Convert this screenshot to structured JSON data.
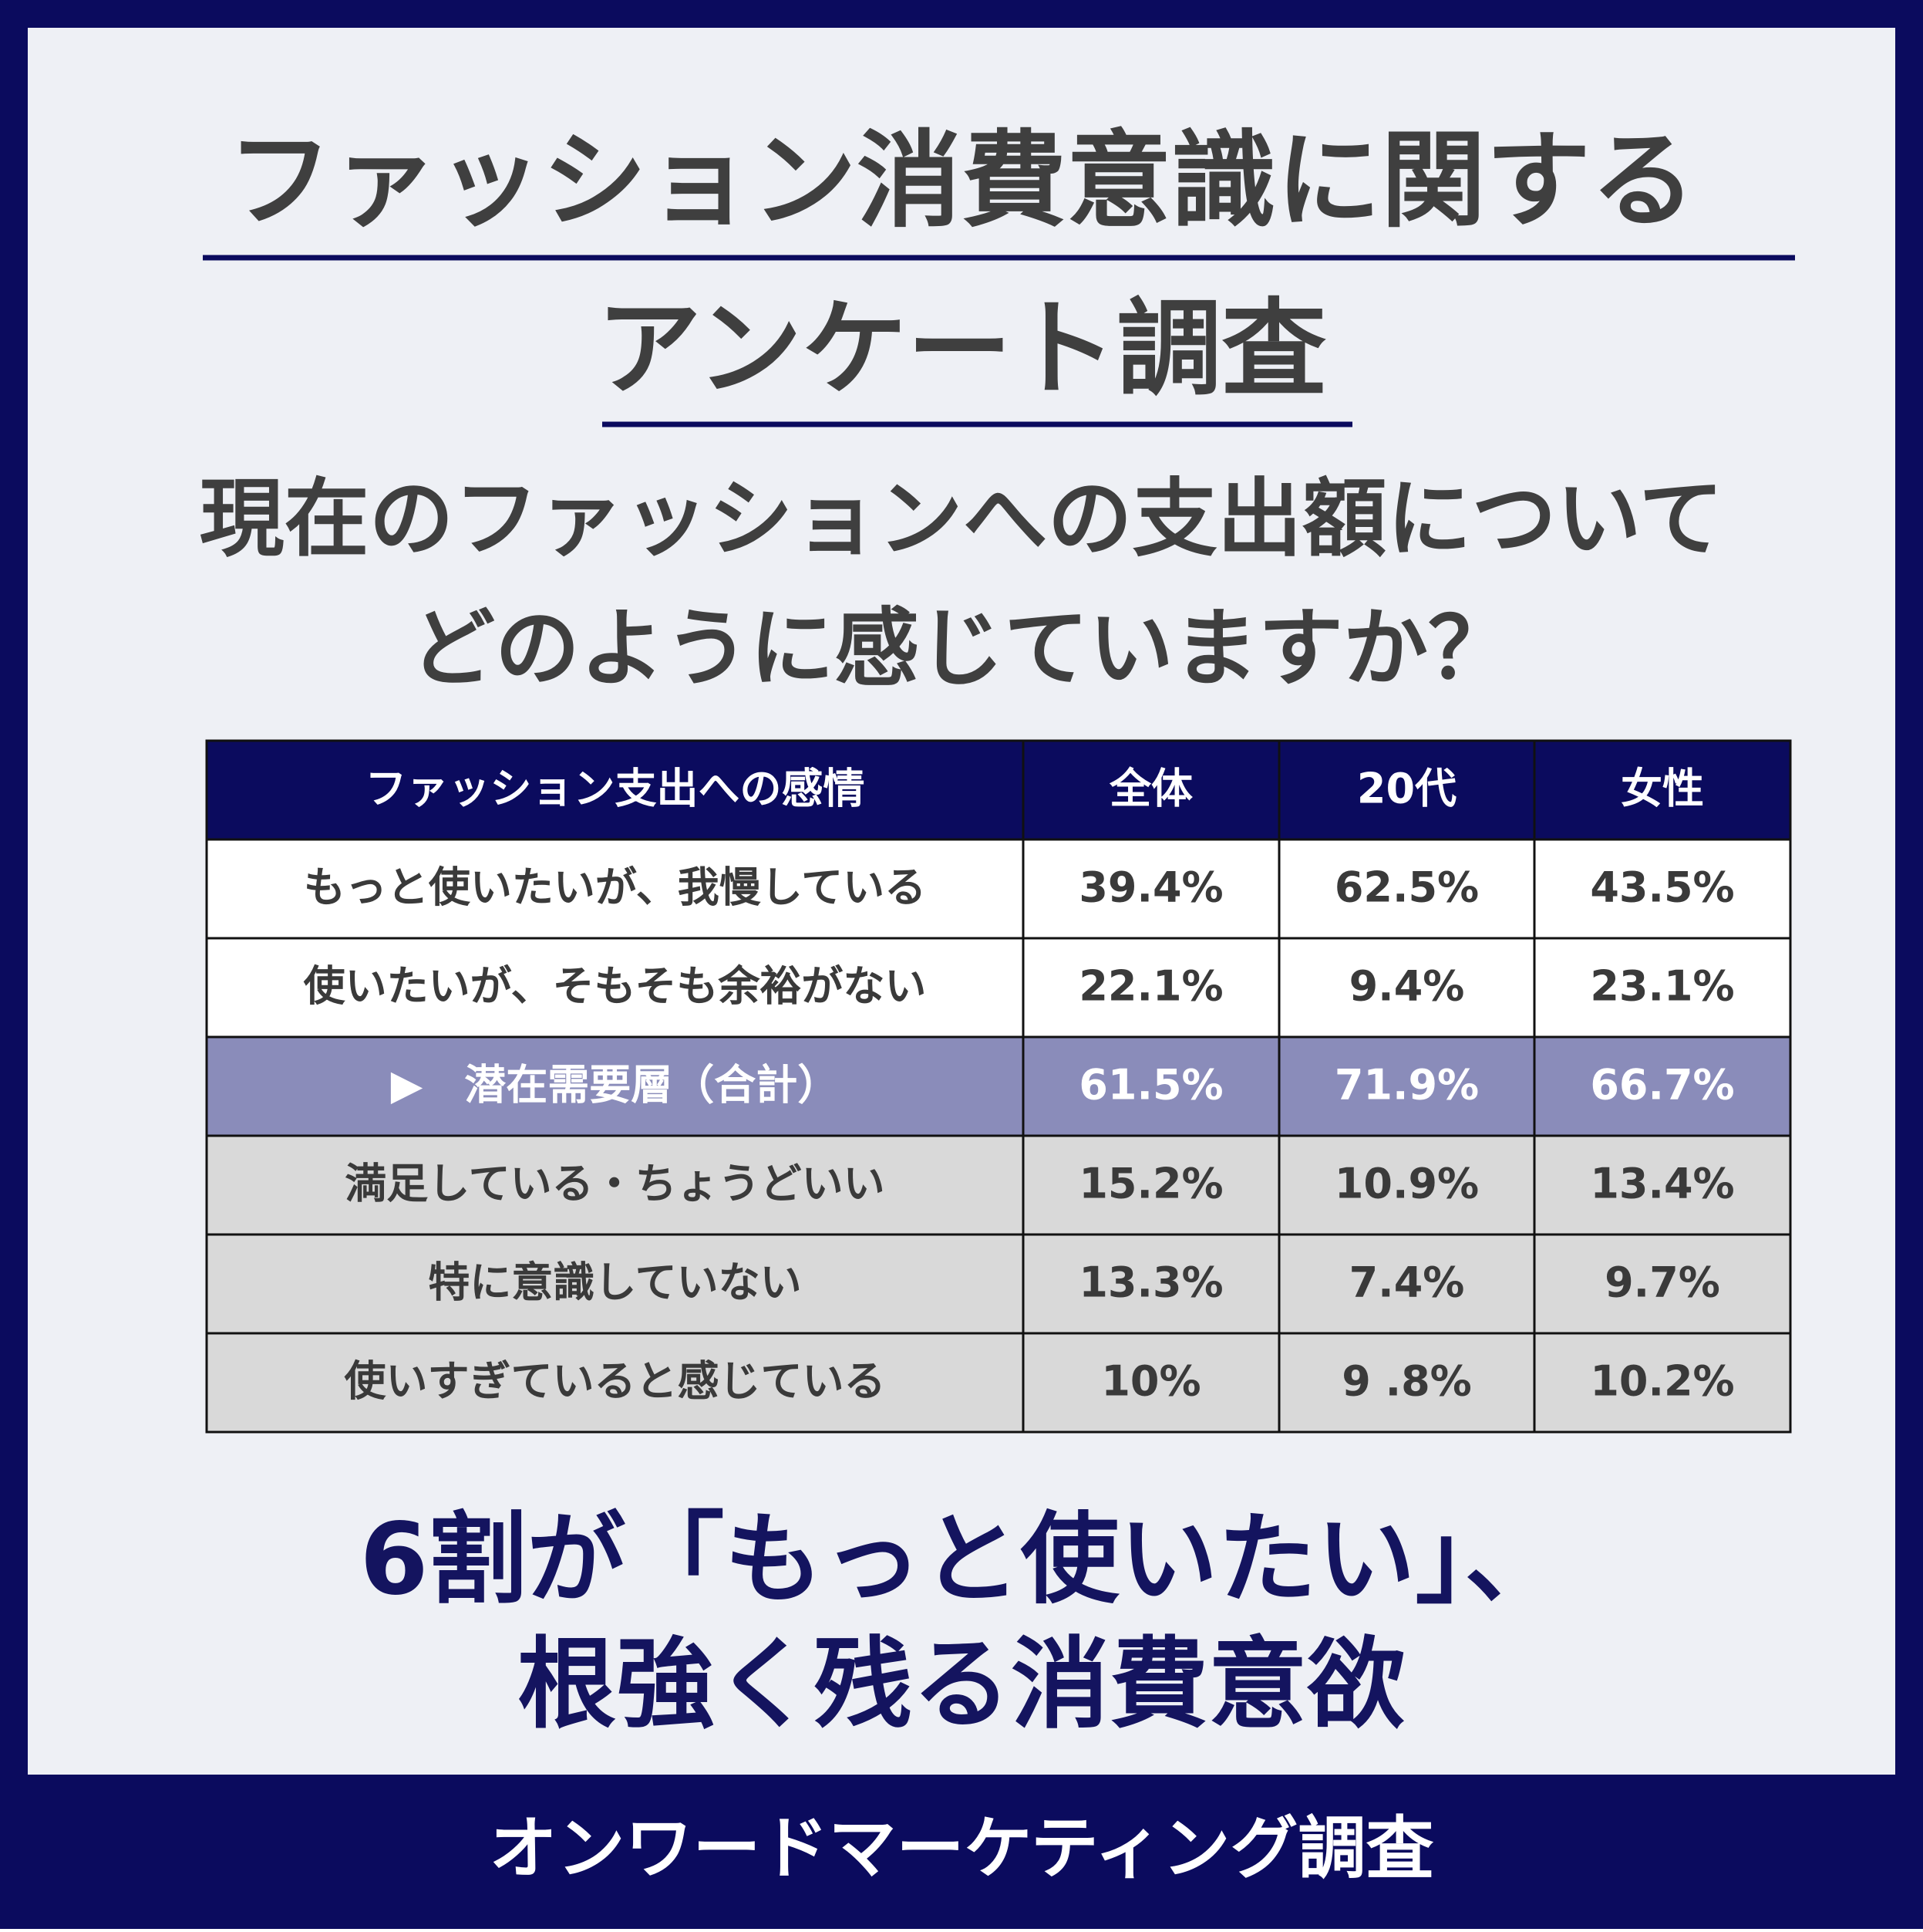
{
  "header": {
    "title": [
      "ファッション消費意識に関する",
      "アンケート調査"
    ]
  },
  "question": [
    "現在のファッションへの支出額について",
    "どのように感じていますか？"
  ],
  "table": {
    "columns": [
      "ファッション支出への感情",
      "全体",
      "20代",
      "女性"
    ],
    "rows": [
      [
        "もっと使いたいが、我慢している",
        "39.4%",
        "62.5%",
        "43.5%"
      ],
      [
        "使いたいが、そもそも余裕がない",
        "22.1%",
        "9.4%",
        "23.1%"
      ],
      [
        "▶　潜在需要層（合計）",
        "61.5%",
        "71.9%",
        "66.7%"
      ],
      [
        "満足している・ちょうどいい",
        "15.2%",
        "10.9%",
        "13.4%"
      ],
      [
        "特に意識していない",
        "13.3%",
        "7.4%",
        "9.7%"
      ],
      [
        "使いすぎていると感じている",
        "10%",
        "9 .8%",
        "10.2%"
      ]
    ]
  },
  "conclusion": [
    "6割が「もっと使いたい」、",
    "根強く残る消費意欲"
  ],
  "footer": {
    "text": "オンワードマーケティング調査"
  }
}
